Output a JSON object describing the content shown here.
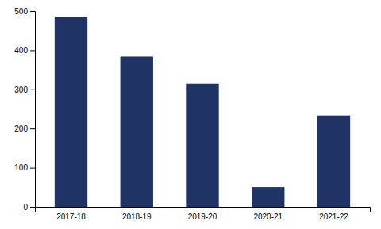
{
  "chart_data": {
    "type": "bar",
    "categories": [
      "2017-18",
      "2018-19",
      "2019-20",
      "2020-21",
      "2021-22"
    ],
    "values": [
      485.0,
      383.7,
      314.3,
      50.4,
      233.4
    ],
    "color": "#1f3464",
    "ylim": [
      0,
      500
    ],
    "yticks": [
      0,
      100,
      200,
      300,
      400,
      500
    ],
    "grid": false
  }
}
